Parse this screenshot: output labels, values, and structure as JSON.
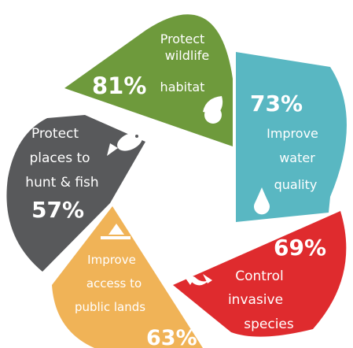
{
  "chart_data": {
    "type": "pie",
    "title": "",
    "categories": [
      "Protect wildlife habitat",
      "Improve water quality",
      "Control invasive species",
      "Improve access to public lands",
      "Protect places to hunt & fish"
    ],
    "values": [
      81,
      73,
      69,
      63,
      57
    ],
    "unit": "%",
    "segments": [
      {
        "lines": [
          "Protect",
          "wildlife",
          "habitat"
        ],
        "value_label": "81%",
        "color": "#6e9a3c",
        "icon": "leaf-icon"
      },
      {
        "lines": [
          "Improve",
          "water",
          "quality"
        ],
        "value_label": "73%",
        "color": "#59b7c2",
        "icon": "water-drop-icon"
      },
      {
        "lines": [
          "Control",
          "invasive",
          "species"
        ],
        "value_label": "69%",
        "color": "#df2b2e",
        "icon": "bird-icon"
      },
      {
        "lines": [
          "Improve",
          "access to",
          "public lands"
        ],
        "value_label": "63%",
        "color": "#f0b357",
        "icon": "mountain-icon"
      },
      {
        "lines": [
          "Protect",
          "places to",
          "hunt & fish"
        ],
        "value_label": "57%",
        "color": "#58595b",
        "icon": "fish-icon"
      }
    ]
  }
}
